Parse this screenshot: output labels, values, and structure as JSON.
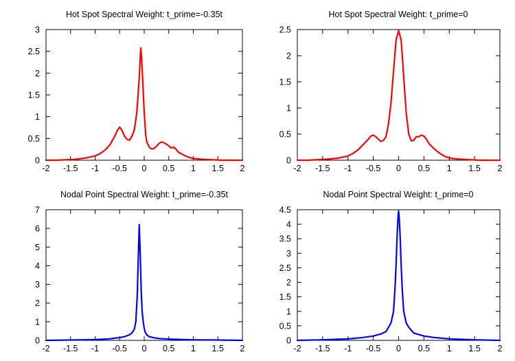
{
  "colors": {
    "hot_spot": "#ff0000",
    "nodal": "#0000ff",
    "background": "#ffffff",
    "axes": "#000000"
  },
  "chart_data": [
    {
      "type": "line",
      "title": "Hot Spot Spectral Weight: t_prime=-0.35t",
      "xlim": [
        -2,
        2
      ],
      "ylim": [
        0,
        3
      ],
      "xticks": [
        "-2",
        "-1.5",
        "-1",
        "-0.5",
        "0",
        "0.5",
        "1",
        "1.5",
        "2"
      ],
      "yticks": [
        "0",
        "0.5",
        "1",
        "1.5",
        "2",
        "2.5",
        "3"
      ],
      "grid": false,
      "series": [
        {
          "color": "#ff0000",
          "x": [
            -2.0,
            -1.8,
            -1.6,
            -1.4,
            -1.2,
            -1.0,
            -0.9,
            -0.8,
            -0.7,
            -0.6,
            -0.55,
            -0.5,
            -0.45,
            -0.4,
            -0.35,
            -0.3,
            -0.25,
            -0.2,
            -0.15,
            -0.1,
            -0.07,
            -0.05,
            -0.03,
            0.0,
            0.03,
            0.05,
            0.1,
            0.15,
            0.2,
            0.25,
            0.3,
            0.35,
            0.4,
            0.45,
            0.5,
            0.55,
            0.6,
            0.65,
            0.7,
            0.8,
            0.9,
            1.0,
            1.2,
            1.4,
            1.6,
            1.8,
            2.0
          ],
          "y": [
            0.0,
            0.0,
            0.01,
            0.02,
            0.05,
            0.1,
            0.15,
            0.23,
            0.35,
            0.55,
            0.68,
            0.76,
            0.68,
            0.55,
            0.48,
            0.46,
            0.55,
            0.7,
            1.1,
            1.9,
            2.58,
            2.3,
            1.8,
            1.1,
            0.6,
            0.43,
            0.3,
            0.26,
            0.27,
            0.32,
            0.38,
            0.42,
            0.4,
            0.37,
            0.33,
            0.28,
            0.3,
            0.25,
            0.18,
            0.12,
            0.07,
            0.04,
            0.02,
            0.01,
            0.0,
            0.0,
            0.0
          ]
        }
      ]
    },
    {
      "type": "line",
      "title": "Hot Spot Spectral Weight: t_prime=0",
      "xlim": [
        -2,
        2
      ],
      "ylim": [
        0,
        2.5
      ],
      "xticks": [
        "-2",
        "-1.5",
        "-1",
        "-0.5",
        "0",
        "0.5",
        "1",
        "1.5",
        "2"
      ],
      "yticks": [
        "0",
        "0.5",
        "1",
        "1.5",
        "2",
        "2.5"
      ],
      "grid": false,
      "series": [
        {
          "color": "#ff0000",
          "x": [
            -2.0,
            -1.8,
            -1.6,
            -1.4,
            -1.2,
            -1.0,
            -0.9,
            -0.8,
            -0.7,
            -0.6,
            -0.55,
            -0.5,
            -0.45,
            -0.4,
            -0.35,
            -0.3,
            -0.25,
            -0.2,
            -0.15,
            -0.1,
            -0.05,
            0.0,
            0.05,
            0.1,
            0.15,
            0.2,
            0.25,
            0.3,
            0.35,
            0.4,
            0.45,
            0.5,
            0.55,
            0.6,
            0.7,
            0.8,
            0.9,
            1.0,
            1.2,
            1.4,
            1.6,
            1.8,
            2.0
          ],
          "y": [
            0.0,
            0.0,
            0.01,
            0.02,
            0.04,
            0.08,
            0.13,
            0.2,
            0.3,
            0.4,
            0.46,
            0.48,
            0.45,
            0.4,
            0.36,
            0.38,
            0.45,
            0.7,
            1.1,
            1.7,
            2.3,
            2.48,
            2.3,
            1.6,
            0.9,
            0.5,
            0.37,
            0.38,
            0.45,
            0.45,
            0.48,
            0.46,
            0.4,
            0.32,
            0.22,
            0.14,
            0.08,
            0.04,
            0.02,
            0.01,
            0.0,
            0.0,
            0.0
          ]
        }
      ]
    },
    {
      "type": "line",
      "title": "Nodal Point Spectral Weight: t_prime=-0.35t",
      "xlim": [
        -2,
        2
      ],
      "ylim": [
        0,
        7
      ],
      "xticks": [
        "-2",
        "-1.5",
        "-1",
        "-0.5",
        "0",
        "0.5",
        "1",
        "1.5",
        "2"
      ],
      "yticks": [
        "0",
        "1",
        "2",
        "3",
        "4",
        "5",
        "6",
        "7"
      ],
      "grid": false,
      "series": [
        {
          "color": "#0000ff",
          "x": [
            -2.0,
            -1.5,
            -1.0,
            -0.7,
            -0.5,
            -0.4,
            -0.3,
            -0.25,
            -0.2,
            -0.17,
            -0.14,
            -0.12,
            -0.1,
            -0.08,
            -0.06,
            -0.04,
            -0.02,
            0.0,
            0.02,
            0.05,
            0.1,
            0.2,
            0.3,
            0.5,
            0.7,
            1.0,
            1.5,
            2.0
          ],
          "y": [
            0.0,
            0.02,
            0.04,
            0.08,
            0.15,
            0.2,
            0.3,
            0.4,
            0.6,
            1.0,
            2.5,
            4.5,
            6.2,
            4.5,
            2.6,
            1.5,
            1.0,
            0.65,
            0.45,
            0.3,
            0.2,
            0.14,
            0.1,
            0.07,
            0.05,
            0.03,
            0.02,
            0.0
          ]
        }
      ]
    },
    {
      "type": "line",
      "title": "Nodal Point Spectral Weight: t_prime=0",
      "xlim": [
        -2,
        2
      ],
      "ylim": [
        0,
        4.5
      ],
      "xticks": [
        "-2",
        "-1.5",
        "-1",
        "-0.5",
        "0",
        "0.5",
        "1",
        "1.5",
        "2"
      ],
      "yticks": [
        "0",
        "0.5",
        "1",
        "1.5",
        "2",
        "2.5",
        "3",
        "3.5",
        "4",
        "4.5"
      ],
      "grid": false,
      "series": [
        {
          "color": "#0000ff",
          "x": [
            -2.0,
            -1.5,
            -1.0,
            -0.7,
            -0.5,
            -0.35,
            -0.25,
            -0.2,
            -0.15,
            -0.1,
            -0.07,
            -0.05,
            -0.03,
            -0.01,
            0.0,
            0.01,
            0.03,
            0.05,
            0.07,
            0.1,
            0.15,
            0.2,
            0.3,
            0.5,
            0.7,
            1.0,
            1.5,
            2.0
          ],
          "y": [
            0.0,
            0.02,
            0.05,
            0.1,
            0.15,
            0.22,
            0.3,
            0.45,
            0.6,
            1.0,
            1.8,
            2.6,
            3.6,
            4.3,
            4.45,
            4.3,
            3.6,
            2.6,
            1.8,
            1.0,
            0.6,
            0.45,
            0.25,
            0.15,
            0.1,
            0.05,
            0.02,
            0.0
          ]
        }
      ]
    }
  ]
}
